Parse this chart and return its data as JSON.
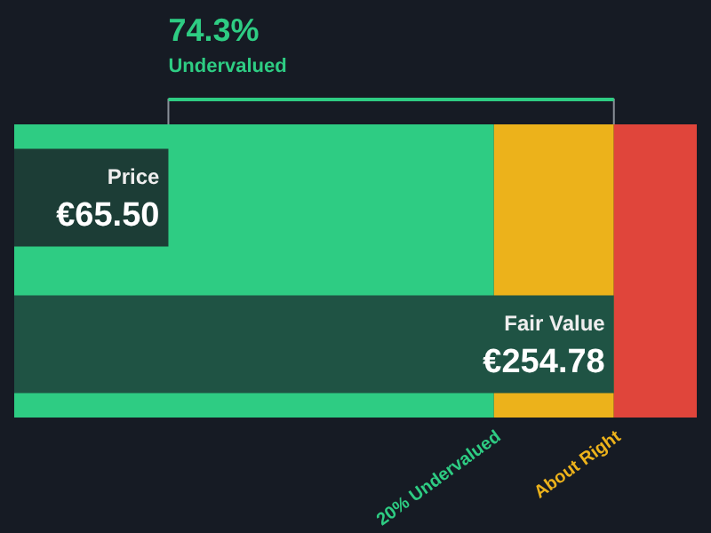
{
  "chart_data": {
    "type": "bar",
    "orientation": "horizontal",
    "title": "74.3%",
    "subtitle": "Undervalued",
    "categories": [
      "Price",
      "Fair Value"
    ],
    "values": [
      65.5,
      254.78
    ],
    "colors": [
      "#1c3d36",
      "#1f5344"
    ],
    "value_labels": [
      "€65.50",
      "€254.78"
    ],
    "xlim": [
      0,
      290
    ],
    "bands": [
      {
        "axis": "x",
        "from": 0,
        "to": 203.82,
        "label": "20% Undervalued",
        "color": "#2ecc83"
      },
      {
        "axis": "x",
        "from": 203.82,
        "to": 254.78,
        "label": "About Right",
        "color": "#ecb21b"
      },
      {
        "axis": "x",
        "from": 254.78,
        "to": 290,
        "label": null,
        "color": "#e0453b"
      }
    ],
    "tick_labels": false,
    "grid": false
  }
}
